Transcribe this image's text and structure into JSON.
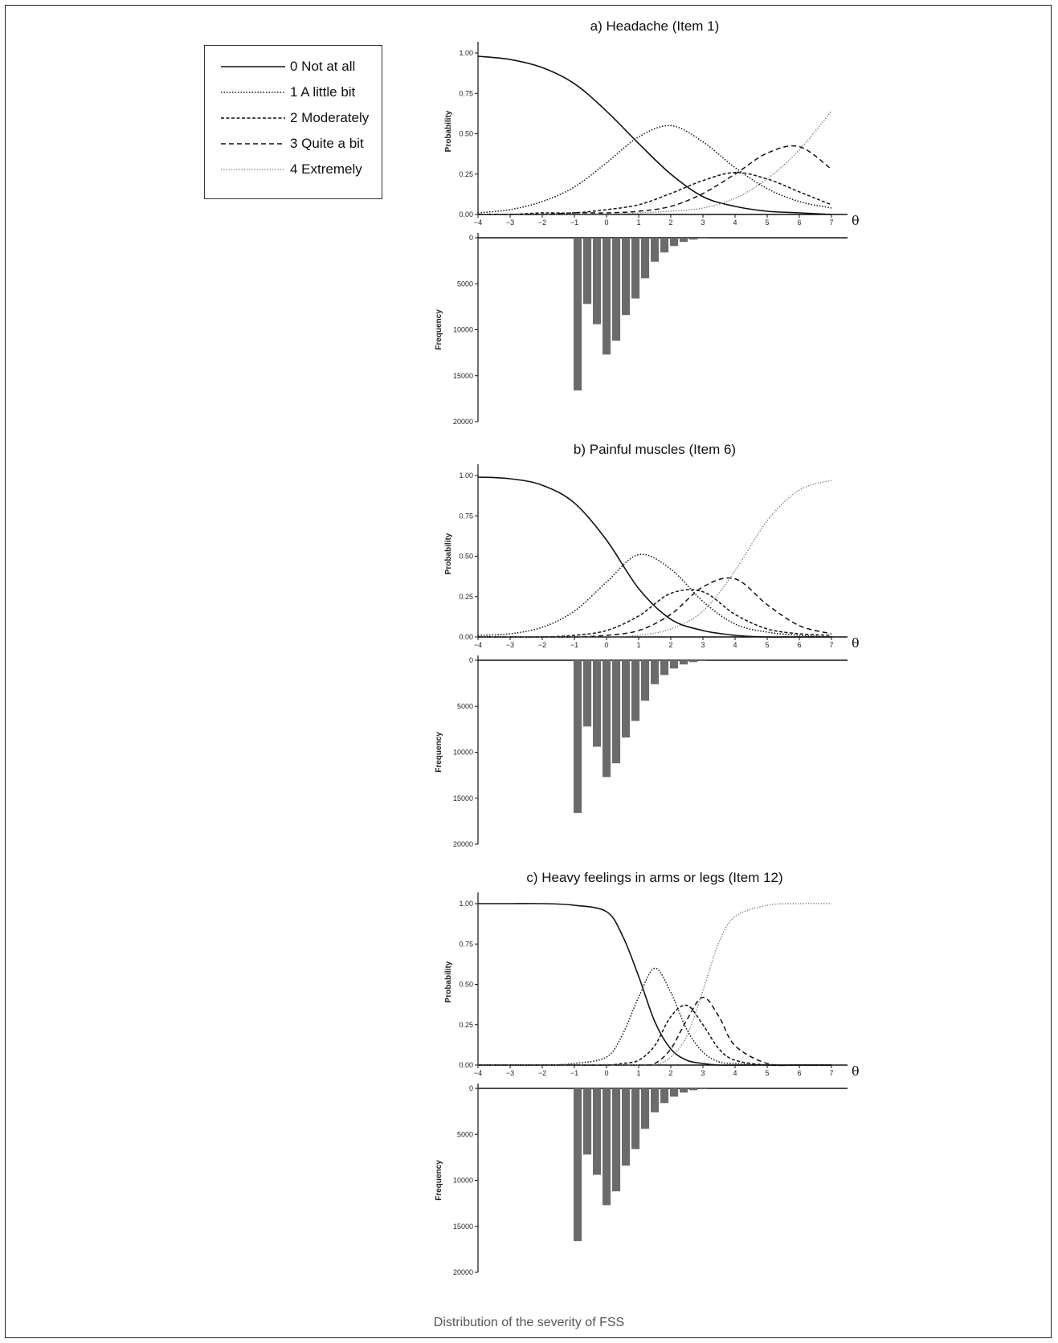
{
  "legend": {
    "items": [
      {
        "label": "0 Not at all",
        "style": "solid"
      },
      {
        "label": "1 A little bit",
        "style": "dotted"
      },
      {
        "label": "2 Moderately",
        "style": "dashed-fine"
      },
      {
        "label": "3 Quite a bit",
        "style": "dashed"
      },
      {
        "label": "4 Extremely",
        "style": "dotted-light"
      }
    ]
  },
  "caption": "Distribution of the severity of FSS",
  "chart_data": [
    {
      "type": "line",
      "title": "a) Headache (Item 1)",
      "xlabel": "θ",
      "ylabel": "Probability",
      "xlim": [
        -4,
        7
      ],
      "ylim": [
        0,
        1
      ],
      "x_ticks": [
        "-4",
        "-3",
        "-2",
        "-1",
        "0",
        "1",
        "2",
        "3",
        "4",
        "5",
        "6",
        "7"
      ],
      "y_ticks": [
        "0.00",
        "0.25",
        "0.50",
        "0.75",
        "1.00"
      ],
      "x": [
        -4,
        -3,
        -2,
        -1,
        0,
        1,
        2,
        3,
        4,
        5,
        6,
        7
      ],
      "series": [
        {
          "name": "0 Not at all",
          "values": [
            0.98,
            0.96,
            0.91,
            0.81,
            0.64,
            0.44,
            0.25,
            0.11,
            0.05,
            0.02,
            0.01,
            0.0
          ]
        },
        {
          "name": "1 A little bit",
          "values": [
            0.01,
            0.03,
            0.08,
            0.17,
            0.32,
            0.48,
            0.55,
            0.45,
            0.29,
            0.16,
            0.08,
            0.04
          ]
        },
        {
          "name": "2 Moderately",
          "values": [
            0.0,
            0.0,
            0.01,
            0.01,
            0.03,
            0.06,
            0.13,
            0.21,
            0.26,
            0.22,
            0.14,
            0.06
          ]
        },
        {
          "name": "3 Quite a bit",
          "values": [
            0.0,
            0.0,
            0.0,
            0.01,
            0.01,
            0.02,
            0.05,
            0.13,
            0.25,
            0.38,
            0.42,
            0.28
          ]
        },
        {
          "name": "4 Extremely",
          "values": [
            0.0,
            0.0,
            0.0,
            0.0,
            0.0,
            0.01,
            0.02,
            0.04,
            0.1,
            0.22,
            0.4,
            0.64
          ]
        }
      ]
    },
    {
      "type": "bar",
      "xlabel": "",
      "ylabel": "Frequency",
      "xlim": [
        -4,
        7
      ],
      "ylim": [
        0,
        20000
      ],
      "y_ticks": [
        "0",
        "5000",
        "10000",
        "15000",
        "20000"
      ],
      "x": [
        -0.9,
        -0.6,
        -0.3,
        0.0,
        0.3,
        0.6,
        0.9,
        1.2,
        1.5,
        1.8,
        2.1,
        2.4,
        2.7,
        3.0
      ],
      "values": [
        16600,
        7200,
        9400,
        12700,
        11200,
        8400,
        6600,
        4400,
        2600,
        1600,
        900,
        450,
        200,
        80
      ]
    },
    {
      "type": "line",
      "title": "b) Painful muscles (Item 6)",
      "xlabel": "θ",
      "ylabel": "Probability",
      "xlim": [
        -4,
        7
      ],
      "ylim": [
        0,
        1
      ],
      "x_ticks": [
        "-4",
        "-3",
        "-2",
        "-1",
        "0",
        "1",
        "2",
        "3",
        "4",
        "5",
        "6",
        "7"
      ],
      "y_ticks": [
        "0.00",
        "0.25",
        "0.50",
        "0.75",
        "1.00"
      ],
      "x": [
        -4,
        -3,
        -2,
        -1,
        0,
        1,
        2,
        3,
        4,
        5,
        6,
        7
      ],
      "series": [
        {
          "name": "0 Not at all",
          "values": [
            0.99,
            0.98,
            0.94,
            0.83,
            0.6,
            0.3,
            0.11,
            0.04,
            0.01,
            0.0,
            0.0,
            0.0
          ]
        },
        {
          "name": "1 A little bit",
          "values": [
            0.01,
            0.02,
            0.06,
            0.16,
            0.34,
            0.51,
            0.42,
            0.22,
            0.08,
            0.03,
            0.01,
            0.0
          ]
        },
        {
          "name": "2 Moderately",
          "values": [
            0.0,
            0.0,
            0.0,
            0.01,
            0.04,
            0.13,
            0.27,
            0.28,
            0.14,
            0.05,
            0.02,
            0.01
          ]
        },
        {
          "name": "3 Quite a bit",
          "values": [
            0.0,
            0.0,
            0.0,
            0.0,
            0.01,
            0.04,
            0.14,
            0.31,
            0.36,
            0.2,
            0.07,
            0.02
          ]
        },
        {
          "name": "4 Extremely",
          "values": [
            0.0,
            0.0,
            0.0,
            0.0,
            0.0,
            0.01,
            0.05,
            0.16,
            0.41,
            0.72,
            0.91,
            0.97
          ]
        }
      ]
    },
    {
      "type": "bar",
      "xlabel": "",
      "ylabel": "Frequency",
      "xlim": [
        -4,
        7
      ],
      "ylim": [
        0,
        20000
      ],
      "y_ticks": [
        "0",
        "5000",
        "10000",
        "15000",
        "20000"
      ],
      "x": [
        -0.9,
        -0.6,
        -0.3,
        0.0,
        0.3,
        0.6,
        0.9,
        1.2,
        1.5,
        1.8,
        2.1,
        2.4,
        2.7,
        3.0
      ],
      "values": [
        16600,
        7200,
        9400,
        12700,
        11200,
        8400,
        6600,
        4400,
        2600,
        1600,
        900,
        450,
        200,
        80
      ]
    },
    {
      "type": "line",
      "title": "c) Heavy feelings in arms or legs (Item 12)",
      "xlabel": "θ",
      "ylabel": "Probability",
      "xlim": [
        -4,
        7
      ],
      "ylim": [
        0,
        1
      ],
      "x_ticks": [
        "-4",
        "-3",
        "-2",
        "-1",
        "0",
        "1",
        "2",
        "3",
        "4",
        "5",
        "6",
        "7"
      ],
      "y_ticks": [
        "0.00",
        "0.25",
        "0.50",
        "0.75",
        "1.00"
      ],
      "x": [
        -4,
        -3,
        -2,
        -1,
        0,
        0.5,
        1,
        1.5,
        2,
        2.5,
        3,
        3.5,
        4,
        5,
        6,
        7
      ],
      "series": [
        {
          "name": "0 Not at all",
          "values": [
            1.0,
            1.0,
            1.0,
            0.99,
            0.95,
            0.8,
            0.55,
            0.27,
            0.1,
            0.03,
            0.01,
            0.0,
            0.0,
            0.0,
            0.0,
            0.0
          ]
        },
        {
          "name": "1 A little bit",
          "values": [
            0.0,
            0.0,
            0.0,
            0.01,
            0.05,
            0.19,
            0.42,
            0.6,
            0.45,
            0.22,
            0.08,
            0.02,
            0.01,
            0.0,
            0.0,
            0.0
          ]
        },
        {
          "name": "2 Moderately",
          "values": [
            0.0,
            0.0,
            0.0,
            0.0,
            0.0,
            0.01,
            0.03,
            0.12,
            0.3,
            0.37,
            0.25,
            0.1,
            0.03,
            0.0,
            0.0,
            0.0
          ]
        },
        {
          "name": "3 Quite a bit",
          "values": [
            0.0,
            0.0,
            0.0,
            0.0,
            0.0,
            0.0,
            0.0,
            0.01,
            0.1,
            0.28,
            0.42,
            0.3,
            0.12,
            0.01,
            0.0,
            0.0
          ]
        },
        {
          "name": "4 Extremely",
          "values": [
            0.0,
            0.0,
            0.0,
            0.0,
            0.0,
            0.0,
            0.0,
            0.0,
            0.05,
            0.18,
            0.46,
            0.76,
            0.92,
            0.99,
            1.0,
            1.0
          ]
        }
      ]
    },
    {
      "type": "bar",
      "xlabel": "",
      "ylabel": "Frequency",
      "xlim": [
        -4,
        7
      ],
      "ylim": [
        0,
        20000
      ],
      "y_ticks": [
        "0",
        "5000",
        "10000",
        "15000",
        "20000"
      ],
      "x": [
        -0.9,
        -0.6,
        -0.3,
        0.0,
        0.3,
        0.6,
        0.9,
        1.2,
        1.5,
        1.8,
        2.1,
        2.4,
        2.7,
        3.0
      ],
      "values": [
        16600,
        7200,
        9400,
        12700,
        11200,
        8400,
        6600,
        4400,
        2600,
        1600,
        900,
        450,
        200,
        80
      ]
    }
  ]
}
